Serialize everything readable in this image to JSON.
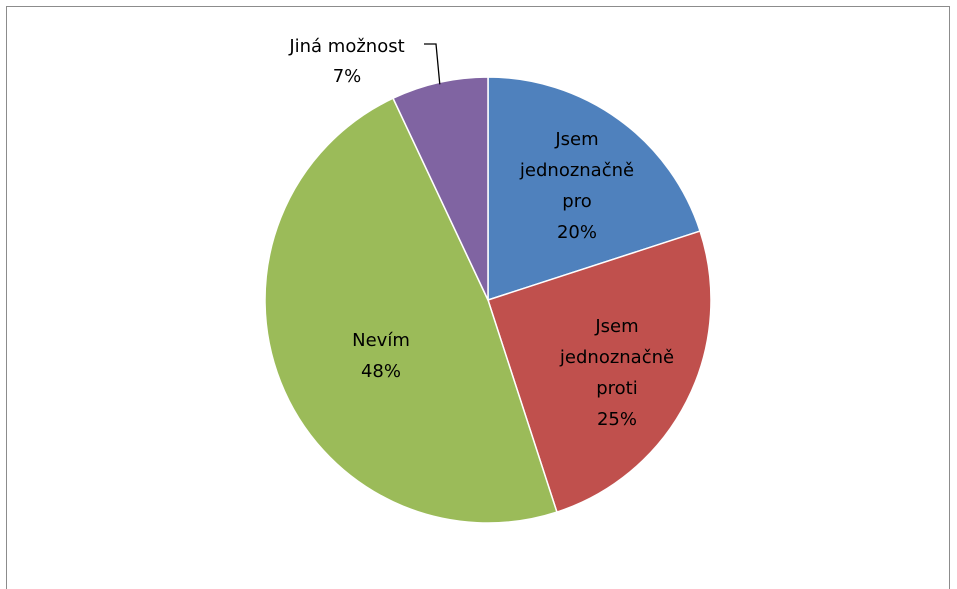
{
  "chart_data": {
    "type": "pie",
    "slices": [
      {
        "label": "Jsem jednoznačně pro",
        "label_lines": [
          "Jsem",
          "jednoznačně",
          "pro"
        ],
        "value": 20,
        "value_label": "20%",
        "color": "#4F81BD"
      },
      {
        "label": "Jsem jednoznačně proti",
        "label_lines": [
          "Jsem",
          "jednoznačně",
          "proti"
        ],
        "value": 25,
        "value_label": "25%",
        "color": "#C0504D"
      },
      {
        "label": "Nevím",
        "label_lines": [
          "Nevím"
        ],
        "value": 48,
        "value_label": "48%",
        "color": "#9BBB59"
      },
      {
        "label": "Jiná možnost",
        "label_lines": [
          "Jiná možnost"
        ],
        "value": 7,
        "value_label": "7%",
        "color": "#8064A2"
      }
    ],
    "start_angle": "12 o'clock",
    "direction": "clockwise",
    "legend": "none",
    "data_labels": "category name and percentage"
  }
}
